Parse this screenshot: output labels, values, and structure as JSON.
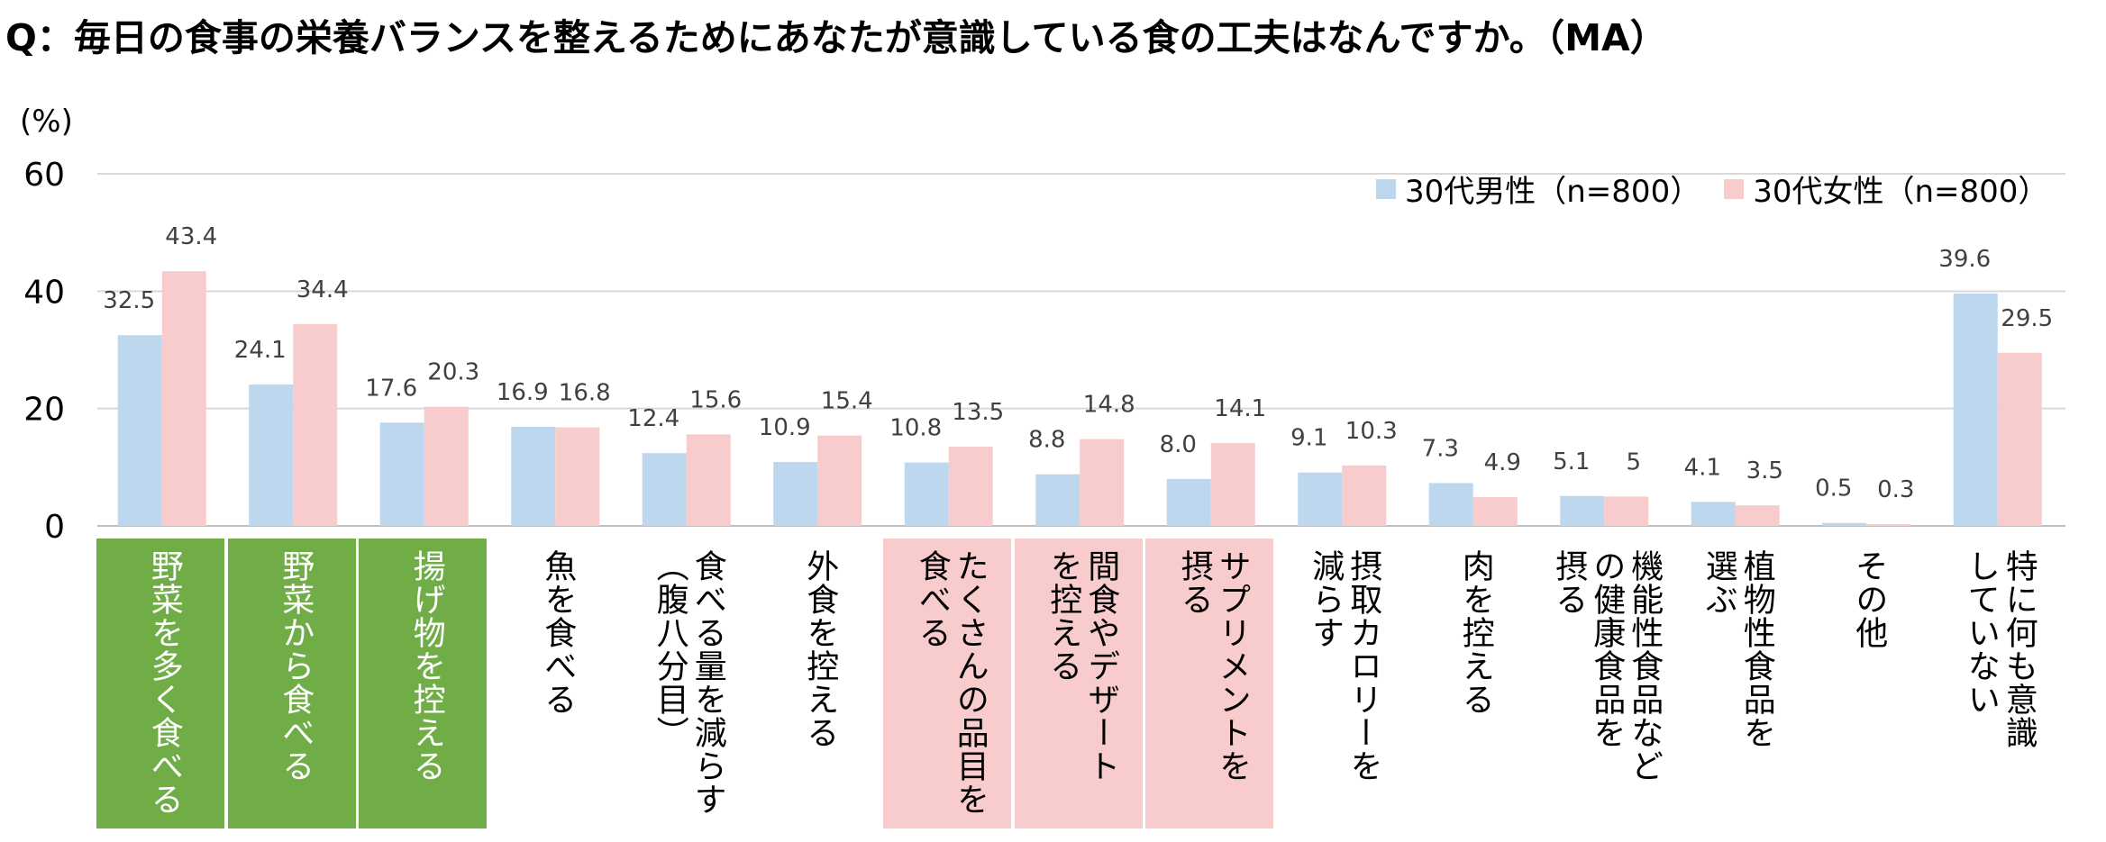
{
  "title": "Q：毎日の食事の栄養バランスを整えるためにあなたが意識している食の工夫はなんですか。（MA）",
  "colors": {
    "male": "#bdd7ee",
    "female": "#f8cbcc",
    "highlight_green": "#70ad47",
    "highlight_pink": "#f8cbcc",
    "grid": "#d9d9d9",
    "axis": "#bfbfbf"
  },
  "chart_data": {
    "type": "bar",
    "title": "Q：毎日の食事の栄養バランスを整えるためにあなたが意識している食の工夫はなんですか。（MA）",
    "ylabel": "(%)",
    "ylim": [
      0,
      60
    ],
    "yticks": [
      0,
      20,
      40,
      60
    ],
    "grid": true,
    "legend_position": "top-right",
    "categories": [
      "野菜を多く食べる",
      "野菜から食べる",
      "揚げ物を控える",
      "魚を食べる",
      "食べる量を減らす（腹八分目）",
      "外食を控える",
      "たくさんの品目を食べる",
      "間食やデザートを控える",
      "サプリメントを摂る",
      "摂取カロリーを減らす",
      "肉を控える",
      "機能性食品などの健康食品を摂る",
      "植物性食品を選ぶ",
      "その他",
      "特に何も意識していない"
    ],
    "category_lines": [
      [
        "野菜を多く食べる"
      ],
      [
        "野菜から食べる"
      ],
      [
        "揚げ物を控える"
      ],
      [
        "魚を食べる"
      ],
      [
        "食べる量を減らす",
        "︵腹八分目︶"
      ],
      [
        "外食を控える"
      ],
      [
        "たくさんの品目を",
        "食べる"
      ],
      [
        "間食やデザート",
        "を控える"
      ],
      [
        "サプリメントを",
        "摂る"
      ],
      [
        "摂取カロリーを",
        "減らす"
      ],
      [
        "肉を控える"
      ],
      [
        "機能性食品など",
        "の健康食品を",
        "摂る"
      ],
      [
        "植物性食品を",
        "選ぶ"
      ],
      [
        "その他"
      ],
      [
        "特に何も意識",
        "していない"
      ]
    ],
    "highlight": [
      "green",
      "green",
      "green",
      "none",
      "none",
      "none",
      "pink",
      "pink",
      "pink",
      "none",
      "none",
      "none",
      "none",
      "none",
      "none"
    ],
    "series": [
      {
        "name": "30代男性（n=800）",
        "values": [
          32.5,
          24.1,
          17.6,
          16.9,
          12.4,
          10.9,
          10.8,
          8.8,
          8.0,
          9.1,
          7.3,
          5.1,
          4.1,
          0.5,
          39.6
        ],
        "labels": [
          "32.5",
          "24.1",
          "17.6",
          "16.9",
          "12.4",
          "10.9",
          "10.8",
          "8.8",
          "8.0",
          "9.1",
          "7.3",
          "5.1",
          "4.1",
          "0.5",
          "39.6"
        ]
      },
      {
        "name": "30代女性（n=800）",
        "values": [
          43.4,
          34.4,
          20.3,
          16.8,
          15.6,
          15.4,
          13.5,
          14.8,
          14.1,
          10.3,
          4.9,
          5,
          3.5,
          0.3,
          29.5
        ],
        "labels": [
          "43.4",
          "34.4",
          "20.3",
          "16.8",
          "15.6",
          "15.4",
          "13.5",
          "14.8",
          "14.1",
          "10.3",
          "4.9",
          "5",
          "3.5",
          "0.3",
          "29.5"
        ]
      }
    ]
  }
}
